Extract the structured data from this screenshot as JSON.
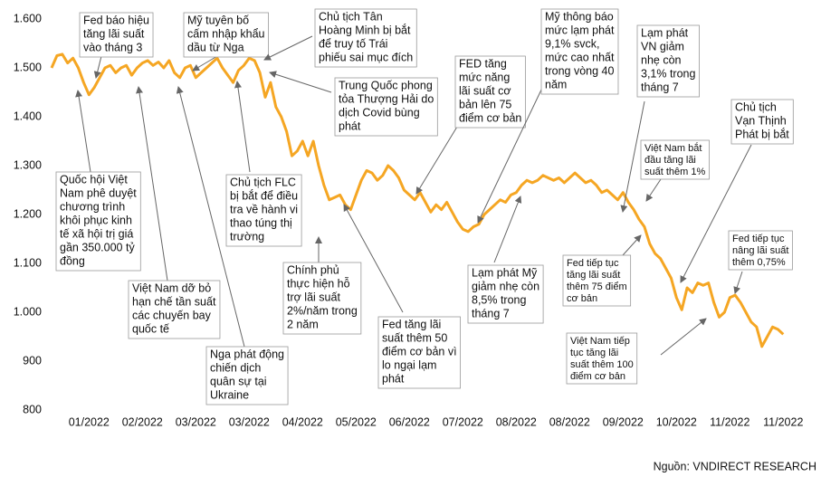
{
  "chart_data": {
    "type": "line",
    "categories": [
      null,
      null,
      null,
      null,
      null,
      null,
      null,
      "01/2022",
      null,
      null,
      null,
      null,
      null,
      null,
      null,
      null,
      null,
      "02/2022",
      null,
      null,
      null,
      null,
      null,
      null,
      null,
      null,
      null,
      "03/2022",
      null,
      null,
      null,
      null,
      null,
      null,
      null,
      null,
      null,
      "03/2022",
      null,
      null,
      null,
      null,
      null,
      null,
      null,
      null,
      null,
      "04/2022",
      null,
      null,
      null,
      null,
      null,
      null,
      null,
      null,
      null,
      "05/2022",
      null,
      null,
      null,
      null,
      null,
      null,
      null,
      null,
      null,
      "06/2022",
      null,
      null,
      null,
      null,
      null,
      null,
      null,
      null,
      null,
      "07/2022",
      null,
      null,
      null,
      null,
      null,
      null,
      null,
      null,
      null,
      "08/2022",
      null,
      null,
      null,
      null,
      null,
      null,
      null,
      null,
      null,
      "08/2022",
      null,
      null,
      null,
      null,
      null,
      null,
      null,
      null,
      null,
      "09/2022",
      null,
      null,
      null,
      null,
      null,
      null,
      null,
      null,
      null,
      "10/2022",
      null,
      null,
      null,
      null,
      null,
      null,
      null,
      null,
      null,
      "11/2022",
      null,
      null,
      null,
      null,
      null,
      null,
      null,
      null,
      null,
      "11/2022"
    ],
    "series": [
      {
        "color": "#f5a623",
        "values": [
          1500,
          1525,
          1528,
          1510,
          1520,
          1500,
          1470,
          1445,
          1460,
          1480,
          1500,
          1505,
          1490,
          1500,
          1505,
          1485,
          1500,
          1510,
          1515,
          1505,
          1512,
          1500,
          1515,
          1490,
          1480,
          1500,
          1505,
          1480,
          1490,
          1500,
          1510,
          1520,
          1500,
          1485,
          1470,
          1495,
          1505,
          1520,
          1515,
          1490,
          1440,
          1470,
          1420,
          1400,
          1370,
          1320,
          1330,
          1350,
          1320,
          1350,
          1300,
          1260,
          1230,
          1235,
          1240,
          1220,
          1210,
          1240,
          1270,
          1290,
          1285,
          1270,
          1280,
          1300,
          1290,
          1275,
          1250,
          1240,
          1230,
          1245,
          1225,
          1205,
          1220,
          1210,
          1225,
          1205,
          1185,
          1170,
          1165,
          1175,
          1180,
          1200,
          1210,
          1220,
          1230,
          1225,
          1240,
          1245,
          1260,
          1270,
          1265,
          1270,
          1280,
          1275,
          1270,
          1275,
          1265,
          1275,
          1285,
          1275,
          1265,
          1270,
          1260,
          1245,
          1250,
          1240,
          1230,
          1245,
          1225,
          1210,
          1190,
          1175,
          1140,
          1120,
          1110,
          1090,
          1070,
          1030,
          1005,
          1050,
          1040,
          1060,
          1055,
          1060,
          1020,
          990,
          1000,
          1030,
          1035,
          1020,
          1000,
          980,
          970,
          930,
          950,
          970,
          965,
          955
        ]
      }
    ],
    "ylim": [
      800,
      1600
    ],
    "yticks": [
      {
        "value": 1600,
        "label": "1.600"
      },
      {
        "value": 1500,
        "label": "1.500"
      },
      {
        "value": 1400,
        "label": "1.400"
      },
      {
        "value": 1300,
        "label": "1.300"
      },
      {
        "value": 1200,
        "label": "1.200"
      },
      {
        "value": 1100,
        "label": "1.100"
      },
      {
        "value": 1000,
        "label": "1.000"
      },
      900,
      800
    ],
    "annotations": [
      {
        "lines": [
          "Fed báo hiệu",
          "tăng lãi suất",
          "vào tháng 3"
        ]
      },
      {
        "lines": [
          "Mỹ tuyên bố",
          "cấm nhập khẩu",
          "dầu từ Nga"
        ]
      },
      {
        "lines": [
          "Chủ tịch Tân",
          "Hoàng Minh bị bắt",
          "để truy tố Trái",
          "phiếu sai mục đích"
        ]
      },
      {
        "lines": [
          "Trung Quốc phong",
          "tỏa Thượng Hải do",
          "dịch Covid bùng",
          "phát"
        ]
      },
      {
        "lines": [
          "FED tăng",
          "mức năng",
          "lãi suất cơ",
          "bản lên 75",
          "điểm cơ bản"
        ]
      },
      {
        "lines": [
          "Mỹ thông báo",
          "mức lạm phát",
          "9,1% svck,",
          "mức cao nhất",
          "trong vòng 40",
          "năm"
        ]
      },
      {
        "lines": [
          "Lạm phát",
          "VN giảm",
          "nhẹ còn",
          "3,1% trong",
          "tháng 7"
        ]
      },
      {
        "lines": [
          "Chủ tịch",
          "Vạn Thịnh",
          "Phát bị bắt"
        ]
      },
      {
        "lines": [
          "Việt Nam bắt",
          "đầu tăng lãi",
          "suất thêm 1%"
        ]
      },
      {
        "lines": [
          "Quốc hội Việt",
          "Nam phê duyệt",
          "chương trình",
          "khôi phục kinh",
          "tế xã hội trị giá",
          "gần 350.000 tỷ",
          "đồng"
        ]
      },
      {
        "lines": [
          "Chủ tịch FLC",
          "bị bắt để điều",
          "tra về hành vi",
          "thao túng thị",
          "trường"
        ]
      },
      {
        "lines": [
          "Việt Nam dỡ bỏ",
          "hạn chế tần suất",
          "các chuyến bay",
          "quốc tế"
        ]
      },
      {
        "lines": [
          "Nga phát động",
          "chiến dịch",
          "quân sự tại",
          "Ukraine"
        ]
      },
      {
        "lines": [
          "Chính phủ",
          "thực hiện hỗ",
          "trợ lãi suất",
          "2%/năm trong",
          "2 năm"
        ]
      },
      {
        "lines": [
          "Fed tăng lãi",
          "suất thêm 50",
          "điểm cơ bản vì",
          "lo ngại lạm",
          "phát"
        ]
      },
      {
        "lines": [
          "Lạm phát Mỹ",
          "giảm nhẹ còn",
          "8,5% trong",
          "tháng 7"
        ]
      },
      {
        "lines": [
          "Fed tiếp tục",
          "tăng lãi suất",
          "thêm 75 điểm",
          "cơ bản"
        ]
      },
      {
        "lines": [
          "Fed tiếp tục",
          "nâng lãi suất",
          "thêm 0,75%"
        ]
      },
      {
        "lines": [
          "Việt Nam tiếp",
          "tục tăng lãi",
          "suất thêm 100",
          "điểm cơ bản"
        ]
      }
    ],
    "source": "Nguồn: VNDIRECT RESEARCH"
  }
}
